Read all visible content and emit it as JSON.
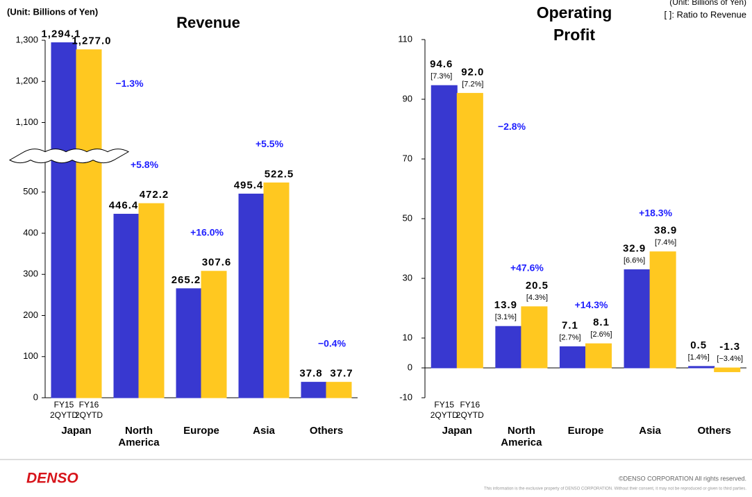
{
  "chart_data": [
    {
      "type": "bar",
      "title": "Revenue",
      "unit_note": "(Unit: Billions of Yen)",
      "categories": [
        "Japan",
        "North America",
        "Europe",
        "Asia",
        "Others"
      ],
      "series": [
        {
          "name": "FY15 2QYTD",
          "color": "#3838d0",
          "values": [
            1294.1,
            446.4,
            265.2,
            495.4,
            37.8
          ],
          "value_labels": [
            "1,294.1",
            "446.4",
            "265.2",
            "495.4",
            "37.8"
          ]
        },
        {
          "name": "FY16 2QYTD",
          "color": "#ffc820",
          "values": [
            1277.0,
            472.2,
            307.6,
            522.5,
            37.7
          ],
          "value_labels": [
            "1,277.0",
            "472.2",
            "307.6",
            "522.5",
            "37.7"
          ]
        }
      ],
      "growth_labels": [
        "−1.3%",
        "+5.8%",
        "+16.0%",
        "+5.5%",
        "−0.4%"
      ],
      "ylim": [
        0,
        1300
      ],
      "yticks": [
        0,
        100,
        200,
        300,
        400,
        500,
        {
          "value": 1100,
          "label": "1,100"
        },
        {
          "value": 1200,
          "label": "1,200"
        },
        {
          "value": 1300,
          "label": "1,300"
        }
      ],
      "ybreak": [
        550,
        1050
      ]
    },
    {
      "type": "bar",
      "title": "Operating Profit",
      "unit_note": "(Unit: Billions of Yen)",
      "ratio_note": "[ ]: Ratio to Revenue",
      "categories": [
        "Japan",
        "North America",
        "Europe",
        "Asia",
        "Others"
      ],
      "series": [
        {
          "name": "FY15 2QYTD",
          "color": "#3838d0",
          "values": [
            94.6,
            13.9,
            7.1,
            32.9,
            0.5
          ],
          "value_labels": [
            "94.6",
            "13.9",
            "7.1",
            "32.9",
            "0.5"
          ],
          "ratio_labels": [
            "[7.3%]",
            "[3.1%]",
            "[2.7%]",
            "[6.6%]",
            "[1.4%]"
          ]
        },
        {
          "name": "FY16 2QYTD",
          "color": "#ffc820",
          "values": [
            92.0,
            20.5,
            8.1,
            38.9,
            -1.3
          ],
          "value_labels": [
            "92.0",
            "20.5",
            "8.1",
            "38.9",
            "-1.3"
          ],
          "ratio_labels": [
            "[7.2%]",
            "[4.3%]",
            "[2.6%]",
            "[7.4%]",
            "[−3.4%]"
          ]
        }
      ],
      "growth_labels": [
        "−2.8%",
        "+47.6%",
        "+14.3%",
        "+18.3%",
        null
      ],
      "ylim": [
        -10,
        110
      ],
      "yticks": [
        -10,
        0,
        10,
        30,
        50,
        70,
        90,
        110
      ]
    }
  ],
  "footer": {
    "logo": "DENSO",
    "copyright": "©DENSO CORPORATION All rights reserved.",
    "disclaimer": "This information is the exclusive property of DENSO CORPORATION.  Without their consent, it may not be reproduced or given to third parties."
  }
}
